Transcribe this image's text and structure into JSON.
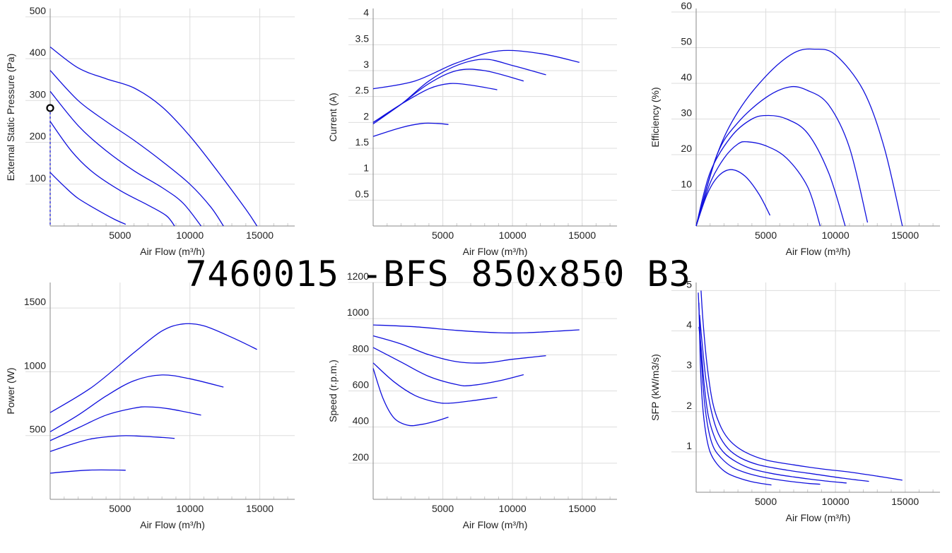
{
  "page": {
    "title": "7460015 -BFS 850x850 B3"
  },
  "chart_data": [
    {
      "type": "line",
      "xlabel": "Air Flow (m³/h)",
      "ylabel": "External Static Pressure (Pa)",
      "xlim": [
        0,
        17500
      ],
      "ylim": [
        0,
        520
      ],
      "xticks": [
        5000,
        10000,
        15000
      ],
      "yticks": [
        100,
        200,
        300,
        400,
        500
      ],
      "color": "#1010dd",
      "series": [
        {
          "x": [
            0,
            2000,
            4000,
            6000,
            8000,
            10000,
            12000,
            14000,
            14800
          ],
          "y": [
            428,
            378,
            352,
            330,
            285,
            215,
            130,
            40,
            0
          ]
        },
        {
          "x": [
            0,
            2000,
            4000,
            6000,
            8000,
            10000,
            11500,
            12400
          ],
          "y": [
            372,
            300,
            250,
            205,
            155,
            100,
            45,
            0
          ]
        },
        {
          "x": [
            0,
            2000,
            4000,
            6000,
            8000,
            9500,
            10800
          ],
          "y": [
            322,
            240,
            180,
            132,
            92,
            55,
            0
          ]
        },
        {
          "x": [
            0,
            1500,
            3000,
            5000,
            7000,
            8300,
            8900
          ],
          "y": [
            250,
            180,
            130,
            85,
            50,
            25,
            0
          ]
        },
        {
          "x": [
            0,
            1000,
            2000,
            3500,
            4600,
            5400
          ],
          "y": [
            128,
            95,
            66,
            36,
            16,
            4
          ]
        }
      ],
      "marker": {
        "x": 0,
        "y": 282
      }
    },
    {
      "type": "line",
      "xlabel": "Air Flow (m³/h)",
      "ylabel": "Current (A)",
      "xlim": [
        0,
        17500
      ],
      "ylim": [
        0,
        4.2
      ],
      "xticks": [
        5000,
        10000,
        15000
      ],
      "yticks": [
        0.5,
        1,
        1.5,
        2,
        2.5,
        3,
        3.5,
        4
      ],
      "ytick_labels": [
        "0.5",
        "1",
        "1.5",
        "2",
        "2.5",
        "3",
        "3.5",
        "4"
      ],
      "color": "#1010dd",
      "series": [
        {
          "x": [
            0,
            3000,
            6000,
            9000,
            12000,
            14800
          ],
          "y": [
            2.65,
            2.8,
            3.15,
            3.38,
            3.33,
            3.16
          ]
        },
        {
          "x": [
            0,
            2000,
            4000,
            6000,
            8000,
            10000,
            12400
          ],
          "y": [
            2.0,
            2.35,
            2.8,
            3.1,
            3.22,
            3.1,
            2.92
          ]
        },
        {
          "x": [
            0,
            2000,
            4000,
            6000,
            8000,
            10800
          ],
          "y": [
            1.97,
            2.35,
            2.75,
            3.0,
            3.0,
            2.8
          ]
        },
        {
          "x": [
            0,
            2000,
            4000,
            5500,
            7000,
            8900
          ],
          "y": [
            2.0,
            2.35,
            2.65,
            2.75,
            2.72,
            2.63
          ]
        },
        {
          "x": [
            0,
            2000,
            3500,
            4600,
            5400
          ],
          "y": [
            1.73,
            1.9,
            1.98,
            1.98,
            1.96
          ]
        }
      ]
    },
    {
      "type": "line",
      "xlabel": "Air Flow (m³/h)",
      "ylabel": "Efficiency (%)",
      "xlim": [
        0,
        17500
      ],
      "ylim": [
        0,
        61
      ],
      "xticks": [
        5000,
        10000,
        15000
      ],
      "yticks": [
        10,
        20,
        30,
        40,
        50,
        60
      ],
      "color": "#1010dd",
      "series": [
        {
          "x": [
            0,
            1500,
            3000,
            5000,
            7000,
            8500,
            10000,
            12000,
            13500,
            14800
          ],
          "y": [
            0,
            20,
            32,
            42,
            48.5,
            49.6,
            48,
            38,
            22,
            0
          ]
        },
        {
          "x": [
            0,
            1500,
            3000,
            5000,
            6700,
            8000,
            9500,
            11000,
            12300
          ],
          "y": [
            0,
            20,
            29,
            36,
            39,
            38,
            34,
            22,
            1
          ]
        },
        {
          "x": [
            0,
            1000,
            2500,
            4000,
            5200,
            6500,
            8000,
            9500,
            10700
          ],
          "y": [
            0,
            15,
            25,
            30,
            31,
            30,
            26,
            15,
            0
          ]
        },
        {
          "x": [
            0,
            1000,
            2000,
            3000,
            3700,
            5000,
            6500,
            8000,
            8900
          ],
          "y": [
            0,
            12,
            19,
            23,
            23.6,
            22.5,
            19,
            11,
            0
          ]
        },
        {
          "x": [
            0,
            800,
            1600,
            2500,
            3500,
            4500,
            5300
          ],
          "y": [
            0,
            9,
            14,
            15.8,
            14,
            9,
            3
          ]
        }
      ]
    },
    {
      "type": "line",
      "xlabel": "Air Flow (m³/h)",
      "ylabel": "Power (W)",
      "xlim": [
        0,
        17500
      ],
      "ylim": [
        0,
        1700
      ],
      "xticks": [
        5000,
        10000,
        15000
      ],
      "yticks": [
        500,
        1000,
        1500
      ],
      "color": "#1010dd",
      "series": [
        {
          "x": [
            0,
            3000,
            6000,
            8000,
            9500,
            11000,
            13000,
            14800
          ],
          "y": [
            680,
            880,
            1150,
            1320,
            1375,
            1360,
            1270,
            1175
          ]
        },
        {
          "x": [
            0,
            2000,
            4000,
            6000,
            8000,
            10000,
            12400
          ],
          "y": [
            530,
            660,
            810,
            930,
            975,
            945,
            880
          ]
        },
        {
          "x": [
            0,
            2000,
            4000,
            6000,
            7000,
            8500,
            10800
          ],
          "y": [
            460,
            560,
            660,
            715,
            725,
            710,
            660
          ]
        },
        {
          "x": [
            0,
            1500,
            3000,
            5000,
            6500,
            8000,
            8900
          ],
          "y": [
            375,
            430,
            475,
            498,
            495,
            485,
            478
          ]
        },
        {
          "x": [
            0,
            1500,
            3000,
            4600,
            5400
          ],
          "y": [
            205,
            220,
            230,
            230,
            228
          ]
        }
      ]
    },
    {
      "type": "line",
      "xlabel": "Air Flow (m³/h)",
      "ylabel": "Speed (r.p.m.)",
      "xlim": [
        0,
        17500
      ],
      "ylim": [
        0,
        1200
      ],
      "xticks": [
        5000,
        10000,
        15000
      ],
      "yticks": [
        200,
        400,
        600,
        800,
        1000,
        1200
      ],
      "color": "#1010dd",
      "series": [
        {
          "x": [
            0,
            3000,
            6000,
            9000,
            11000,
            13000,
            14800
          ],
          "y": [
            965,
            955,
            935,
            922,
            922,
            930,
            938
          ]
        },
        {
          "x": [
            0,
            2000,
            4000,
            6000,
            8000,
            10000,
            12400
          ],
          "y": [
            905,
            860,
            800,
            762,
            755,
            775,
            795
          ]
        },
        {
          "x": [
            0,
            2000,
            4000,
            6000,
            7000,
            9000,
            10800
          ],
          "y": [
            840,
            760,
            680,
            635,
            630,
            655,
            690
          ]
        },
        {
          "x": [
            0,
            1500,
            3000,
            4500,
            5500,
            7000,
            8900
          ],
          "y": [
            755,
            650,
            575,
            538,
            532,
            545,
            565
          ]
        },
        {
          "x": [
            0,
            700,
            1500,
            2500,
            3500,
            4600,
            5400
          ],
          "y": [
            725,
            560,
            450,
            410,
            415,
            435,
            455
          ]
        }
      ]
    },
    {
      "type": "line",
      "xlabel": "Air Flow (m³/h)",
      "ylabel": "SFP (kW/m3/s)",
      "xlim": [
        0,
        17500
      ],
      "ylim": [
        0,
        5.2
      ],
      "xticks": [
        5000,
        10000,
        15000
      ],
      "yticks": [
        1,
        2,
        3,
        4,
        5
      ],
      "color": "#1010dd",
      "series": [
        {
          "x": [
            350,
            500,
            800,
            1200,
            1800,
            2500,
            3500,
            5000,
            7000,
            9000,
            11000,
            13000,
            14800
          ],
          "y": [
            5.0,
            4.2,
            3.1,
            2.2,
            1.6,
            1.25,
            1.0,
            0.8,
            0.68,
            0.58,
            0.5,
            0.4,
            0.3
          ]
        },
        {
          "x": [
            250,
            400,
            700,
            1100,
            1600,
            2300,
            3200,
            4500,
            6500,
            8500,
            10500,
            12400
          ],
          "y": [
            4.4,
            3.8,
            2.8,
            2.0,
            1.45,
            1.08,
            0.85,
            0.68,
            0.55,
            0.45,
            0.35,
            0.27
          ]
        },
        {
          "x": [
            200,
            350,
            600,
            900,
            1400,
            2000,
            2900,
            4000,
            5500,
            7000,
            9000,
            10800
          ],
          "y": [
            4.1,
            3.6,
            2.6,
            1.85,
            1.3,
            0.98,
            0.75,
            0.58,
            0.46,
            0.38,
            0.29,
            0.23
          ]
        },
        {
          "x": [
            150,
            300,
            500,
            800,
            1200,
            1800,
            2600,
            3600,
            5000,
            6500,
            8000,
            8900
          ],
          "y": [
            4.95,
            3.8,
            2.6,
            1.7,
            1.15,
            0.85,
            0.62,
            0.48,
            0.36,
            0.28,
            0.22,
            0.2
          ]
        },
        {
          "x": [
            200,
            300,
            450,
            700,
            1000,
            1500,
            2200,
            3000,
            4000,
            5400
          ],
          "y": [
            4.7,
            3.2,
            2.2,
            1.45,
            1.0,
            0.7,
            0.48,
            0.36,
            0.26,
            0.18
          ]
        }
      ]
    }
  ]
}
